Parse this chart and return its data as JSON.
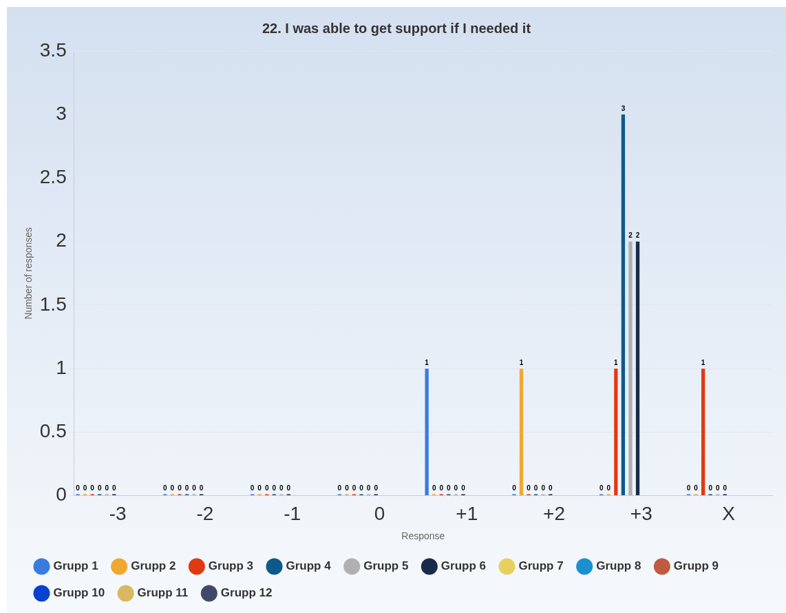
{
  "chart_data": {
    "type": "bar",
    "title": "22. I was able to get support if I needed it",
    "xlabel": "Response",
    "ylabel": "Number of responses",
    "categories": [
      "-3",
      "-2",
      "-1",
      "0",
      "+1",
      "+2",
      "+3",
      "X"
    ],
    "series": [
      {
        "name": "Grupp 1",
        "color": "#3a7be0",
        "values": [
          0,
          0,
          0,
          0,
          1,
          0,
          0,
          0
        ]
      },
      {
        "name": "Grupp 2",
        "color": "#f0a830",
        "values": [
          0,
          0,
          0,
          0,
          0,
          1,
          0,
          0
        ]
      },
      {
        "name": "Grupp 3",
        "color": "#e03a10",
        "values": [
          0,
          0,
          0,
          0,
          0,
          0,
          1,
          1
        ]
      },
      {
        "name": "Grupp 4",
        "color": "#0d5a8a",
        "values": [
          0,
          0,
          0,
          0,
          0,
          0,
          3,
          0
        ]
      },
      {
        "name": "Grupp 5",
        "color": "#b0b0b0",
        "values": [
          0,
          0,
          0,
          0,
          0,
          0,
          2,
          0
        ]
      },
      {
        "name": "Grupp 6",
        "color": "#1a2a4a",
        "values": [
          0,
          0,
          0,
          0,
          0,
          0,
          2,
          0
        ]
      },
      {
        "name": "Grupp 7",
        "color": "#e8d060",
        "values": [
          null,
          null,
          null,
          null,
          null,
          null,
          null,
          null
        ]
      },
      {
        "name": "Grupp 8",
        "color": "#1a90d0",
        "values": [
          null,
          null,
          null,
          null,
          null,
          null,
          null,
          null
        ]
      },
      {
        "name": "Grupp 9",
        "color": "#c05a40",
        "values": [
          null,
          null,
          null,
          null,
          null,
          null,
          null,
          null
        ]
      },
      {
        "name": "Grupp 10",
        "color": "#0a40d0",
        "values": [
          null,
          null,
          null,
          null,
          null,
          null,
          null,
          null
        ]
      },
      {
        "name": "Grupp 11",
        "color": "#d8b860",
        "values": [
          null,
          null,
          null,
          null,
          null,
          null,
          null,
          null
        ]
      },
      {
        "name": "Grupp 12",
        "color": "#404a68",
        "values": [
          null,
          null,
          null,
          null,
          null,
          null,
          null,
          null
        ]
      }
    ],
    "ylim": [
      0,
      3.5
    ],
    "yticks": [
      0,
      0.5,
      1,
      1.5,
      2,
      2.5,
      3,
      3.5
    ],
    "grid": "y",
    "legend": "bottom",
    "data_labels": true
  }
}
